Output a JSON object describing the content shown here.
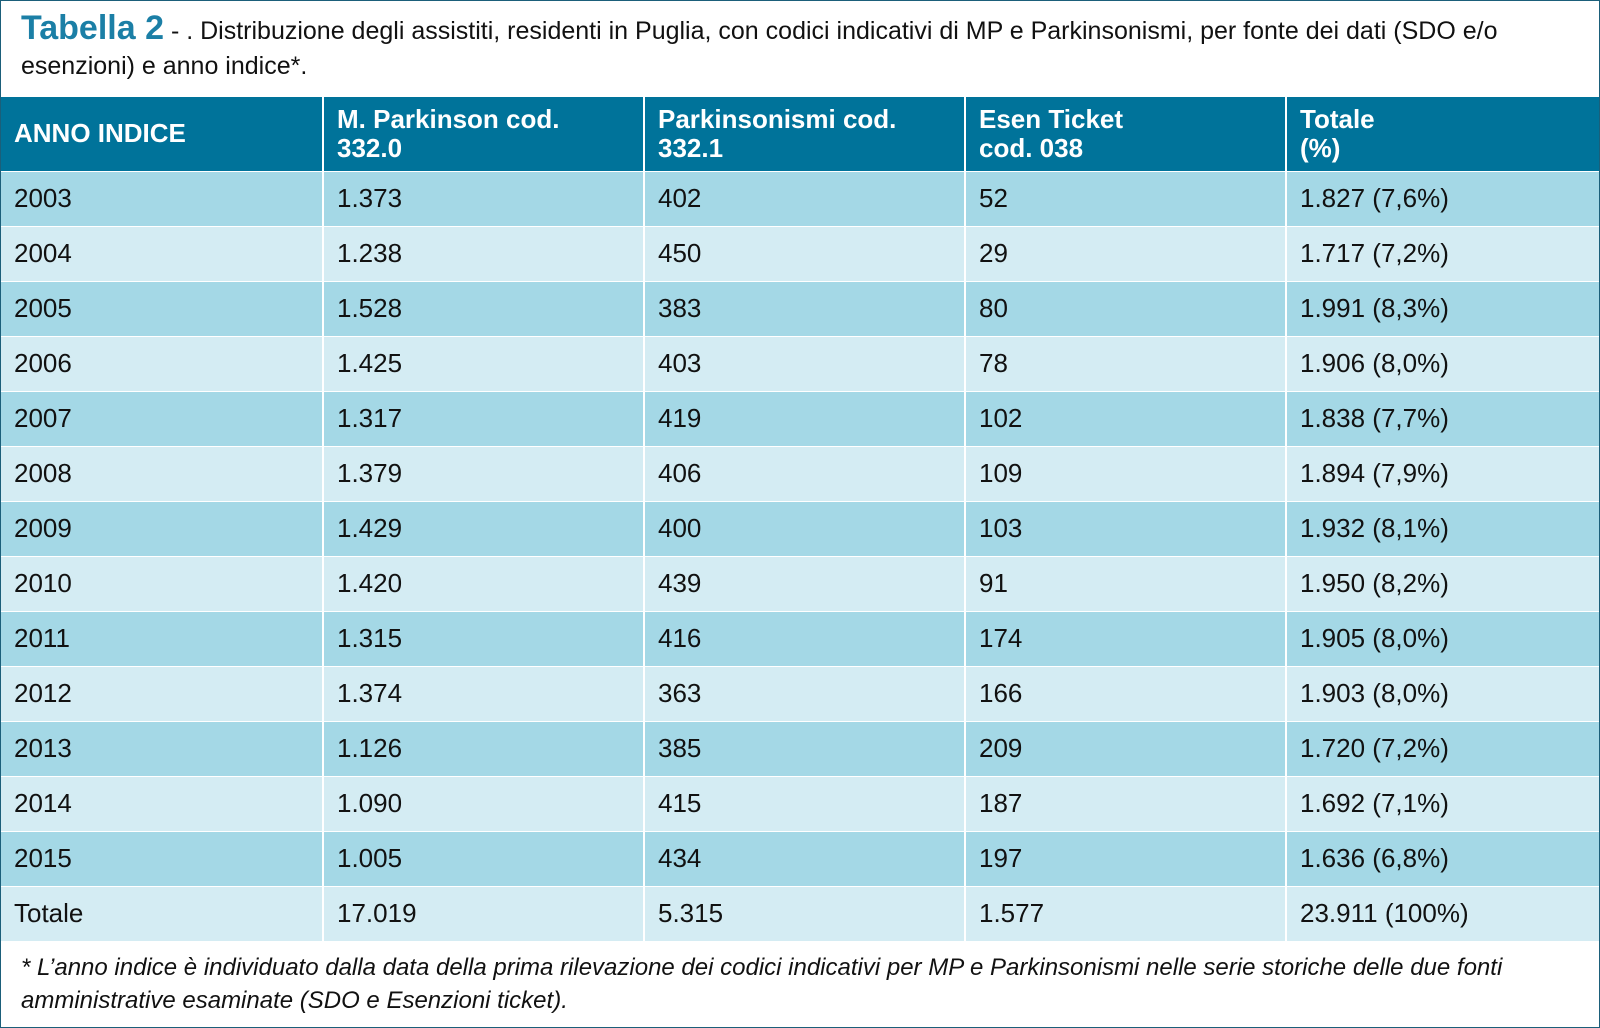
{
  "caption": {
    "label": "Tabella 2",
    "text": " - . Distribuzione degli assistiti, residenti in Puglia, con codici indicativi di MP e Parkinsonismi, per fonte dei dati (SDO e/o esenzioni) e anno indice*."
  },
  "table": {
    "headers": [
      [
        "ANNO INDICE"
      ],
      [
        "M. Parkinson cod.",
        "332.0"
      ],
      [
        "Parkinsonismi cod.",
        "332.1"
      ],
      [
        "Esen Ticket",
        "cod. 038"
      ],
      [
        "Totale",
        "(%)"
      ]
    ],
    "rows": [
      [
        "2003",
        "1.373",
        "402",
        "52",
        "1.827 (7,6%)"
      ],
      [
        "2004",
        "1.238",
        "450",
        "29",
        "1.717 (7,2%)"
      ],
      [
        "2005",
        "1.528",
        "383",
        "80",
        "1.991 (8,3%)"
      ],
      [
        "2006",
        "1.425",
        "403",
        "78",
        "1.906 (8,0%)"
      ],
      [
        "2007",
        "1.317",
        "419",
        "102",
        "1.838 (7,7%)"
      ],
      [
        "2008",
        "1.379",
        "406",
        "109",
        "1.894 (7,9%)"
      ],
      [
        "2009",
        "1.429",
        "400",
        "103",
        "1.932 (8,1%)"
      ],
      [
        "2010",
        "1.420",
        "439",
        "91",
        "1.950 (8,2%)"
      ],
      [
        "2011",
        "1.315",
        "416",
        "174",
        "1.905 (8,0%)"
      ],
      [
        "2012",
        "1.374",
        "363",
        "166",
        "1.903 (8,0%)"
      ],
      [
        "2013",
        "1.126",
        "385",
        "209",
        "1.720 (7,2%)"
      ],
      [
        "2014",
        "1.090",
        "415",
        "187",
        "1.692 (7,1%)"
      ],
      [
        "2015",
        "1.005",
        "434",
        "197",
        "1.636 (6,8%)"
      ],
      [
        "Totale",
        "17.019",
        "5.315",
        "1.577",
        "23.911 (100%)"
      ]
    ]
  },
  "footnote": "* L’anno indice è individuato dalla data della prima rilevazione dei codici indicativi per MP e Parkinsonismi nelle serie storiche delle due fonti amministrative esaminate (SDO e Esenzioni ticket).",
  "colors": {
    "header_bg": "#00739a",
    "row_dark": "#a4d8e6",
    "row_light": "#d4ecf3",
    "title_accent": "#1b7fa6"
  }
}
